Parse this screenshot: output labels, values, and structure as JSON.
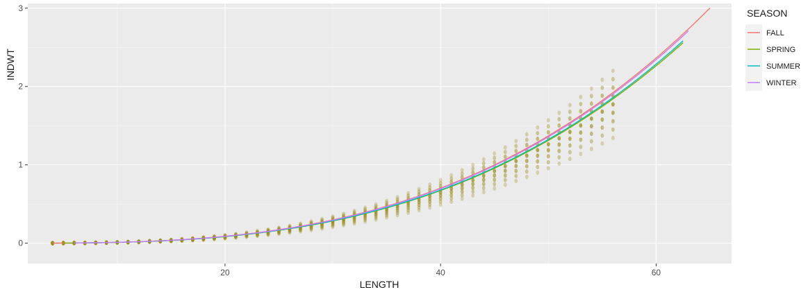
{
  "chart_data": {
    "type": "line",
    "title": "",
    "xlabel": "LENGTH",
    "ylabel": "INDWT",
    "xlim": [
      1.7,
      67
    ],
    "ylim": [
      -0.26,
      3.06
    ],
    "xticks": [
      20,
      40,
      60
    ],
    "yticks": [
      0,
      1,
      2,
      3
    ],
    "grid": true,
    "legend": {
      "title": "SEASON",
      "position": "right"
    },
    "series": [
      {
        "name": "FALL",
        "color": "#F8766D",
        "a": 1.14e-05,
        "b": 2.99,
        "xrange": [
          4,
          65
        ]
      },
      {
        "name": "SPRING",
        "color": "#7CAE00",
        "a": 1.07e-05,
        "b": 2.995,
        "xrange": [
          5,
          62.5
        ]
      },
      {
        "name": "SUMMER",
        "color": "#00BFC4",
        "a": 1.08e-05,
        "b": 2.995,
        "xrange": [
          6,
          62.5
        ]
      },
      {
        "name": "WINTER",
        "color": "#C77CFF",
        "a": 1.13e-05,
        "b": 2.99,
        "xrange": [
          6,
          63
        ]
      }
    ],
    "scatter_bands": {
      "color": "#9C8F1E",
      "x_start": 4,
      "x_end": 56,
      "x_step": 1
    }
  }
}
